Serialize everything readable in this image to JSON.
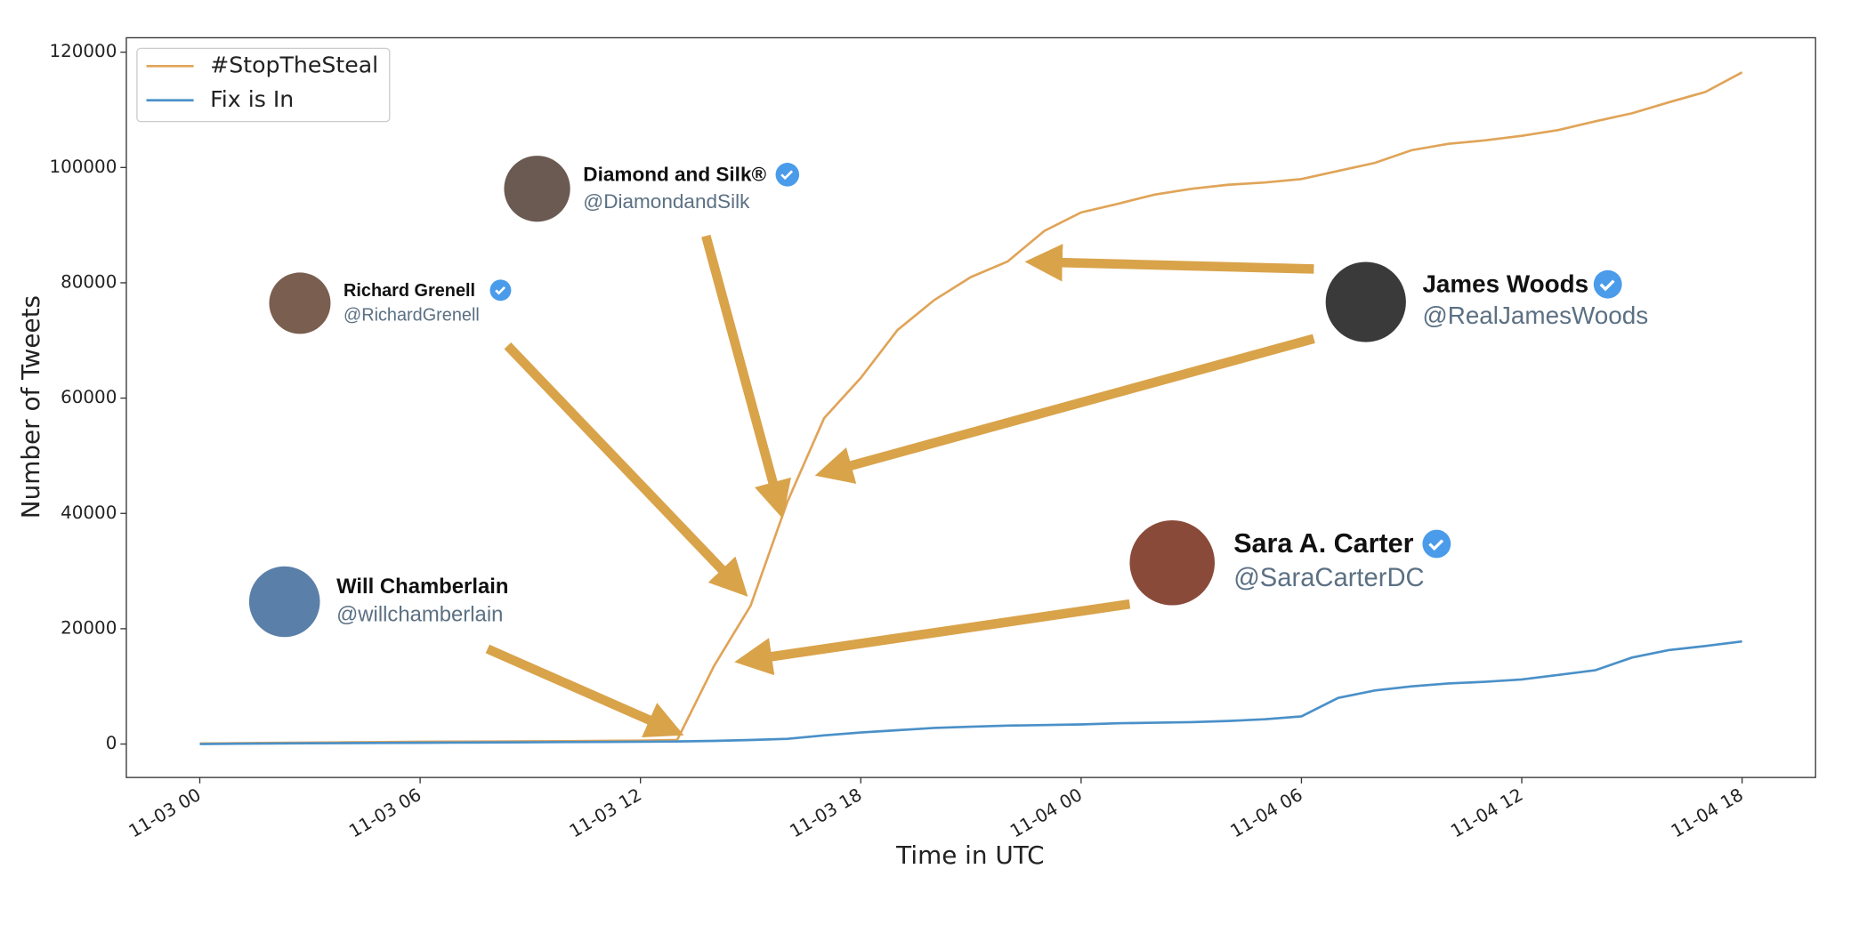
{
  "chart_data": {
    "type": "line",
    "x_label": "Time in UTC",
    "y_label": "Number of Tweets",
    "x": [
      "11-03 00",
      "11-03 01",
      "11-03 02",
      "11-03 03",
      "11-03 04",
      "11-03 05",
      "11-03 06",
      "11-03 07",
      "11-03 08",
      "11-03 09",
      "11-03 10",
      "11-03 11",
      "11-03 12",
      "11-03 13",
      "11-03 14",
      "11-03 15",
      "11-03 16",
      "11-03 17",
      "11-03 18",
      "11-03 19",
      "11-03 20",
      "11-03 21",
      "11-03 22",
      "11-03 23",
      "11-04 00",
      "11-04 01",
      "11-04 02",
      "11-04 03",
      "11-04 04",
      "11-04 05",
      "11-04 06",
      "11-04 07",
      "11-04 08",
      "11-04 09",
      "11-04 10",
      "11-04 11",
      "11-04 12",
      "11-04 13",
      "11-04 14",
      "11-04 15",
      "11-04 16",
      "11-04 17",
      "11-04 18"
    ],
    "series": [
      {
        "name": "#StopTheSteal",
        "color": "#e0a458",
        "values": [
          100,
          150,
          200,
          250,
          300,
          350,
          400,
          420,
          450,
          480,
          500,
          550,
          600,
          700,
          13500,
          24000,
          42000,
          56500,
          63500,
          71800,
          77000,
          81000,
          83700,
          89000,
          92200,
          93700,
          95300,
          96300,
          97000,
          97400,
          98000,
          99400,
          100800,
          103000,
          104100,
          104700,
          105500,
          106500,
          108000,
          109400,
          111300,
          113100,
          116500
        ]
      },
      {
        "name": "Fix is In",
        "color": "#4a90c8",
        "values": [
          0,
          50,
          100,
          130,
          160,
          190,
          220,
          250,
          280,
          310,
          340,
          370,
          400,
          450,
          550,
          700,
          900,
          1500,
          2000,
          2400,
          2800,
          3000,
          3200,
          3300,
          3400,
          3600,
          3700,
          3800,
          4000,
          4300,
          4800,
          8000,
          9300,
          10000,
          10500,
          10800,
          11200,
          12000,
          12800,
          15000,
          16300,
          17000,
          17800
        ]
      }
    ],
    "xlim": [
      "11-02 22",
      "11-04 20"
    ],
    "xticks": [
      "11-03 00",
      "11-03 06",
      "11-03 12",
      "11-03 18",
      "11-04 00",
      "11-04 06",
      "11-04 12",
      "11-04 18"
    ],
    "ylim": [
      -5800,
      122500
    ],
    "yticks": [
      0,
      20000,
      40000,
      60000,
      80000,
      100000,
      120000
    ],
    "legend": "upper left",
    "annotations": [
      {
        "name": "Diamond and Silk®",
        "handle": "@DiamondandSilk"
      },
      {
        "name": "Richard Grenell",
        "handle": "@RichardGrenell"
      },
      {
        "name": "Will Chamberlain",
        "handle": "@willchamberlain"
      },
      {
        "name": "James Woods",
        "handle": "@RealJamesWoods"
      },
      {
        "name": "Sara A. Carter",
        "handle": "@SaraCarterDC"
      }
    ]
  }
}
